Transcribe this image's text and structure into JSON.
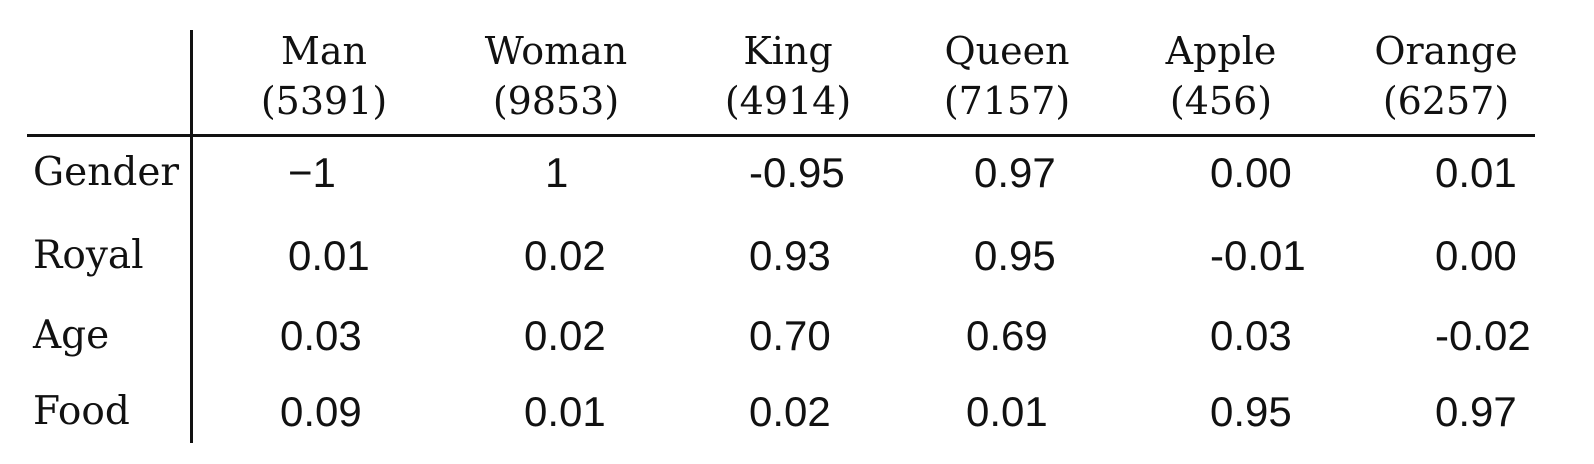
{
  "columns": [
    {
      "word": "Man",
      "index": "(5391)"
    },
    {
      "word": "Woman",
      "index": "(9853)"
    },
    {
      "word": "King",
      "index": "(4914)"
    },
    {
      "word": "Queen",
      "index": "(7157)"
    },
    {
      "word": "Apple",
      "index": "(456)"
    },
    {
      "word": "Orange",
      "index": "(6257)"
    }
  ],
  "rows": [
    {
      "label": "Gender",
      "values": [
        "−1",
        "1",
        "-0.95",
        "0.97",
        "0.00",
        "0.01"
      ]
    },
    {
      "label": "Royal",
      "values": [
        "0.01",
        "0.02",
        "0.93",
        "0.95",
        "-0.01",
        "0.00"
      ]
    },
    {
      "label": "Age",
      "values": [
        "0.03",
        "0.02",
        "0.70",
        "0.69",
        "0.03",
        "-0.02"
      ]
    },
    {
      "label": "Food",
      "values": [
        "0.09",
        "0.01",
        "0.02",
        "0.01",
        "0.95",
        "0.97"
      ]
    }
  ]
}
